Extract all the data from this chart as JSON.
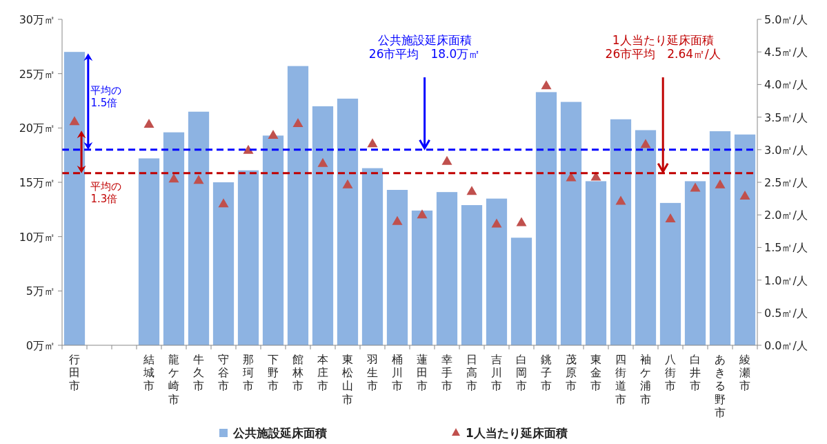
{
  "chart_data": {
    "type": "bar",
    "categories": [
      "行田市",
      null,
      null,
      "結城市",
      "龍ケ崎市",
      "牛久市",
      "守谷市",
      "那珂市",
      "下野市",
      "館林市",
      "本庄市",
      "東松山市",
      "羽生市",
      "桶川市",
      "蓮田市",
      "幸手市",
      "日高市",
      "吉川市",
      "白岡市",
      "銚子市",
      "茂原市",
      "東金市",
      "四街道市",
      "袖ケ浦市",
      "八街市",
      "白井市",
      "あきる野市",
      "綾瀬市"
    ],
    "series": [
      {
        "name": "公共施設延床面積",
        "type": "bar",
        "color": "#8db3e2",
        "values": [
          27.0,
          null,
          null,
          17.2,
          19.6,
          21.5,
          15.0,
          16.1,
          19.3,
          25.7,
          22.0,
          22.7,
          16.3,
          14.3,
          12.4,
          14.1,
          12.9,
          13.5,
          9.9,
          23.3,
          22.4,
          15.1,
          20.8,
          19.8,
          13.1,
          15.1,
          19.7,
          19.4
        ]
      },
      {
        "name": "1人当たり延床面積",
        "type": "scatter",
        "axis": "y2",
        "marker": "triangle",
        "color": "#c0504d",
        "values": [
          3.44,
          null,
          null,
          3.4,
          2.56,
          2.54,
          2.18,
          3.0,
          3.23,
          3.41,
          2.8,
          2.47,
          3.1,
          1.91,
          2.01,
          2.83,
          2.37,
          1.87,
          1.89,
          3.99,
          2.58,
          2.59,
          2.22,
          3.09,
          1.95,
          2.42,
          2.47,
          2.3
        ]
      }
    ],
    "ylim": [
      0,
      30
    ],
    "yticks": [
      {
        "value": 0,
        "label": "0万㎡"
      },
      {
        "value": 5,
        "label": "5万㎡"
      },
      {
        "value": 10,
        "label": "10万㎡"
      },
      {
        "value": 15,
        "label": "15万㎡"
      },
      {
        "value": 20,
        "label": "20万㎡"
      },
      {
        "value": 25,
        "label": "25万㎡"
      },
      {
        "value": 30,
        "label": "30万㎡"
      }
    ],
    "y2lim": [
      0,
      5
    ],
    "y2ticks": [
      {
        "value": 0,
        "label": "0.0㎡/人"
      },
      {
        "value": 0.5,
        "label": "0.5㎡/人"
      },
      {
        "value": 1,
        "label": "1.0㎡/人"
      },
      {
        "value": 1.5,
        "label": "1.5㎡/人"
      },
      {
        "value": 2,
        "label": "2.0㎡/人"
      },
      {
        "value": 2.5,
        "label": "2.5㎡/人"
      },
      {
        "value": 3,
        "label": "3.0㎡/人"
      },
      {
        "value": 3.5,
        "label": "3.5㎡/人"
      },
      {
        "value": 4,
        "label": "4.0㎡/人"
      },
      {
        "value": 4.5,
        "label": "4.5㎡/人"
      },
      {
        "value": 5,
        "label": "5.0㎡/人"
      }
    ],
    "ref_lines": [
      {
        "axis": "y",
        "value": 18.0,
        "label": "公共施設延床面積\n26市平均　18.0万㎡",
        "color": "#0000ff",
        "line_style": "dashed"
      },
      {
        "axis": "y2",
        "value": 2.64,
        "label": "1人当たり延床面積\n26市平均　2.64㎡/人",
        "color": "#c00000",
        "line_style": "dashed"
      }
    ],
    "annotations": [
      "平均の\n1.5倍",
      "平均の\n1.3倍"
    ],
    "legend": "bottom",
    "grid": false
  }
}
